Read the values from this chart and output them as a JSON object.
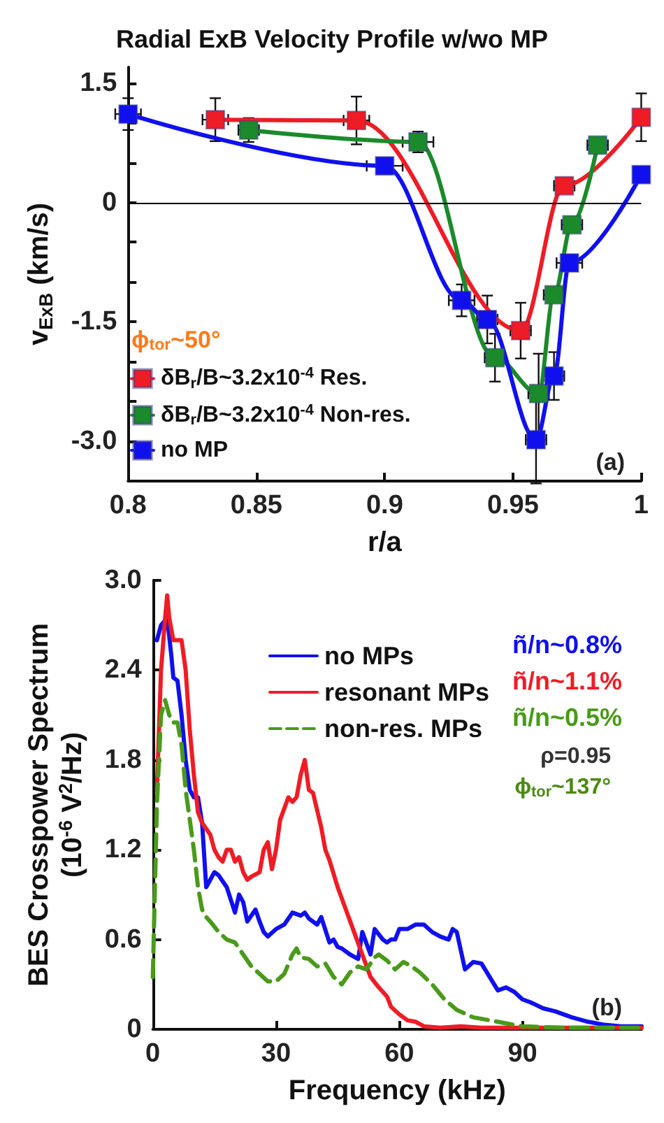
{
  "chart_data": [
    {
      "type": "line",
      "title": "Radial ExB Velocity Profile w/wo MP",
      "xlabel": "r/a",
      "ylabel": "v$_{ExB}$ (km/s)",
      "xlim": [
        0.8,
        1
      ],
      "xticks": [
        0.8,
        0.85,
        0.9,
        0.95,
        1
      ],
      "ylim": [
        -3.5,
        1.7
      ],
      "yticks": [
        {
          "value": -3,
          "label": "-3.0"
        },
        {
          "value": -2.5,
          "label": null
        },
        {
          "value": -2,
          "label": null
        },
        -1.5,
        {
          "value": -1,
          "label": null
        },
        {
          "value": -0.5,
          "label": null
        },
        0,
        {
          "value": 0.5,
          "label": null
        },
        {
          "value": 1,
          "label": null
        },
        1.5
      ],
      "grid": false,
      "legend": "bottom left",
      "marker": "square",
      "ref_lines": [
        {
          "axis": "y",
          "value": 0,
          "color": "#000000"
        }
      ],
      "annotations": [
        "ϕ$_{tor}$~50°",
        "(a)"
      ],
      "series": [
        {
          "name": "δB$_{r}$/B~3.2x10$^{-4}$ Res.",
          "color": "#ee1c25",
          "x": [
            0.834,
            0.889,
            0.953,
            0.97,
            1.0
          ],
          "values": [
            1.04,
            1.03,
            -1.61,
            0.21,
            1.07
          ],
          "errors": [
            0.27,
            0.3,
            0.35,
            null,
            0.3
          ],
          "xerrors": [
            0.005,
            0.005,
            0.004,
            0.004,
            null
          ]
        },
        {
          "name": "δB$_{r}$/B~3.2x10$^{-4}$ Non-res.",
          "color": "#1a8a2a",
          "x": [
            0.847,
            0.913,
            0.943,
            0.96,
            0.966,
            0.973,
            0.983
          ],
          "values": [
            0.91,
            0.76,
            -1.95,
            -2.4,
            -1.16,
            -0.28,
            0.72
          ],
          "errors": [
            0.15,
            0.13,
            0.3,
            0.5,
            null,
            null,
            0.1
          ],
          "xerrors": [
            0.004,
            0.006,
            0.004,
            0.004,
            0.004,
            0.004,
            0.004
          ]
        },
        {
          "name": "no MP",
          "color": "#1010ee",
          "x": [
            0.8,
            0.9,
            0.93,
            0.94,
            0.959,
            0.966,
            0.972,
            1.0
          ],
          "values": [
            1.11,
            0.46,
            -1.23,
            -1.47,
            -2.98,
            -2.18,
            -0.76,
            0.35
          ],
          "errors": [
            0.2,
            null,
            0.2,
            0.3,
            0.55,
            0.3,
            null,
            null
          ],
          "xerrors": [
            0.005,
            0.007,
            0.005,
            0.004,
            0.004,
            0.004,
            0.005,
            null
          ]
        }
      ]
    },
    {
      "type": "line",
      "xlabel": "Frequency (kHz)",
      "ylabel": "BES Crosspower Spectrum\n(10$^{-6}$ V$^{2}$/Hz)",
      "xlim": [
        0,
        119
      ],
      "xticks": [
        0,
        30,
        60,
        90
      ],
      "ylim": [
        0,
        3
      ],
      "yticks": [
        0,
        0.6,
        1.2,
        1.8,
        2.4,
        {
          "value": 3,
          "label": "3.0"
        }
      ],
      "grid": false,
      "legend": "top right",
      "marker": "none",
      "annotations": [
        "ñ/n~0.8%",
        "ñ/n~1.1%",
        "ñ/n~0.5%",
        "ρ=0.95",
        "ϕ$_{tor}$~137°",
        "(b)"
      ],
      "series": [
        {
          "name": "no MPs",
          "color": "#1010ee",
          "line_style": "solid",
          "x": [
            1,
            2,
            3.5,
            4.5,
            5,
            6,
            7,
            8,
            9,
            10,
            11,
            12,
            13,
            14,
            15,
            16,
            18,
            20,
            21,
            22,
            23,
            25,
            26,
            27,
            28,
            30,
            32,
            34,
            36,
            37,
            38,
            40,
            41,
            43,
            44,
            45,
            46,
            48,
            50,
            51,
            53,
            54,
            56,
            57,
            58,
            59,
            60,
            62,
            64,
            66,
            68,
            70,
            72,
            73,
            74,
            76,
            78,
            80,
            82,
            84,
            86,
            88,
            90,
            92,
            95,
            98,
            102,
            106,
            110,
            114,
            119
          ],
          "values": [
            2.6,
            2.7,
            2.75,
            2.5,
            2.35,
            2.33,
            2.1,
            1.8,
            1.6,
            1.55,
            1.55,
            1.38,
            0.95,
            1.0,
            1.05,
            1.03,
            0.95,
            0.78,
            0.9,
            0.85,
            0.72,
            0.8,
            0.72,
            0.65,
            0.62,
            0.67,
            0.7,
            0.78,
            0.76,
            0.78,
            0.74,
            0.7,
            0.75,
            0.58,
            0.6,
            0.55,
            0.54,
            0.5,
            0.47,
            0.65,
            0.5,
            0.67,
            0.6,
            0.58,
            0.6,
            0.6,
            0.67,
            0.67,
            0.7,
            0.7,
            0.65,
            0.62,
            0.6,
            0.67,
            0.65,
            0.4,
            0.45,
            0.44,
            0.35,
            0.26,
            0.28,
            0.25,
            0.2,
            0.18,
            0.14,
            0.12,
            0.08,
            0.05,
            0.03,
            0.02,
            0.02
          ]
        },
        {
          "name": "resonant MPs",
          "color": "#ee1c25",
          "line_style": "solid",
          "x": [
            1,
            2,
            3,
            3.5,
            4,
            5,
            7,
            8,
            9,
            10,
            11,
            12,
            14,
            15,
            16,
            17,
            18,
            19,
            20,
            21,
            22,
            23,
            24,
            26,
            27,
            28,
            29,
            30,
            31,
            33,
            34,
            35,
            36,
            37,
            38,
            39,
            41,
            42,
            43,
            45,
            47,
            49,
            51,
            53,
            55,
            57,
            58,
            60,
            62,
            64,
            66,
            70,
            75,
            80,
            90,
            119
          ],
          "values": [
            1.6,
            2.4,
            2.75,
            2.9,
            2.75,
            2.6,
            2.6,
            2.4,
            2.0,
            1.7,
            1.45,
            1.38,
            1.3,
            1.2,
            1.15,
            1.12,
            1.2,
            1.2,
            1.12,
            1.15,
            1.05,
            1.0,
            1.02,
            1.05,
            1.2,
            1.25,
            1.07,
            1.2,
            1.4,
            1.55,
            1.52,
            1.55,
            1.7,
            1.8,
            1.6,
            1.58,
            1.35,
            1.2,
            1.13,
            0.95,
            0.8,
            0.65,
            0.5,
            0.35,
            0.28,
            0.22,
            0.15,
            0.1,
            0.06,
            0.05,
            0.02,
            0.01,
            0.02,
            0.01,
            0.01,
            0.01
          ]
        },
        {
          "name": "non-res. MPs",
          "color": "#4a9a1a",
          "line_style": "dashed",
          "x": [
            0,
            1,
            2,
            3,
            4,
            5,
            6,
            7,
            8,
            9,
            10,
            11,
            12,
            13,
            14,
            16,
            18,
            20,
            22,
            24,
            26,
            28,
            30,
            32,
            34,
            35,
            36,
            38,
            40,
            42,
            44,
            46,
            48,
            50,
            52,
            54,
            55,
            57,
            59,
            61,
            63,
            65,
            68,
            71,
            74,
            78,
            82,
            86,
            90,
            100,
            119
          ],
          "values": [
            0.35,
            1.5,
            2.1,
            2.2,
            2.1,
            2.05,
            2.05,
            1.9,
            1.6,
            1.4,
            1.2,
            0.95,
            0.8,
            0.75,
            0.72,
            0.65,
            0.6,
            0.58,
            0.5,
            0.42,
            0.37,
            0.32,
            0.32,
            0.37,
            0.5,
            0.54,
            0.48,
            0.47,
            0.42,
            0.44,
            0.35,
            0.3,
            0.38,
            0.42,
            0.4,
            0.48,
            0.5,
            0.46,
            0.4,
            0.45,
            0.42,
            0.38,
            0.3,
            0.2,
            0.13,
            0.08,
            0.06,
            0.04,
            0.02,
            0.01,
            0.01
          ]
        }
      ]
    }
  ]
}
